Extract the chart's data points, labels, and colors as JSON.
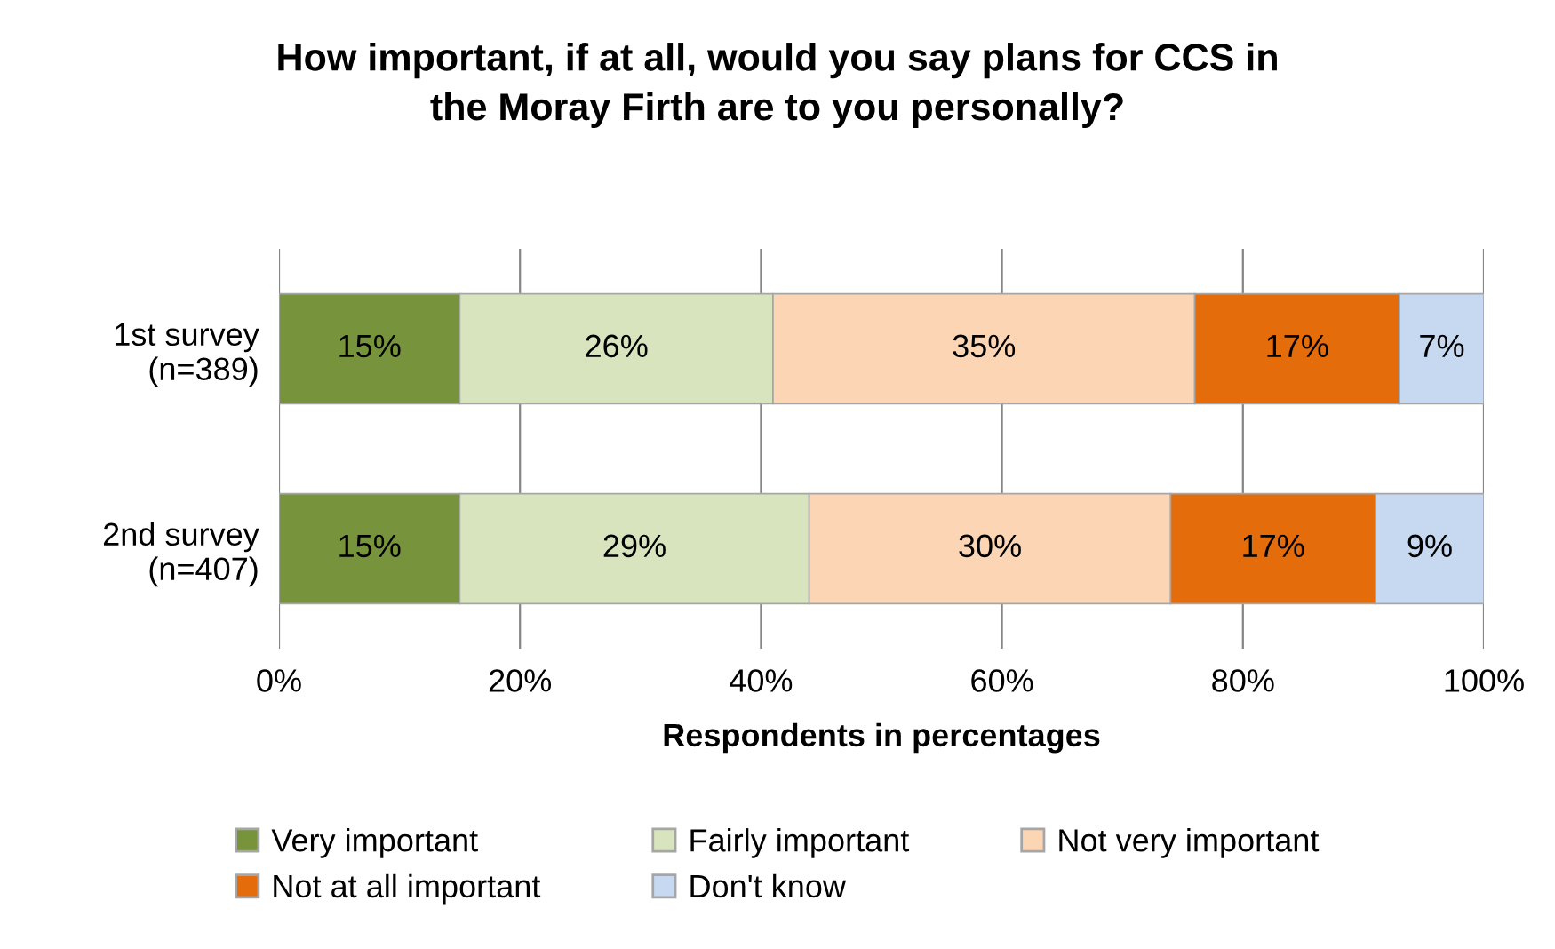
{
  "chart_data": {
    "type": "bar",
    "orientation": "horizontal",
    "stacked": true,
    "title": "How important, if at all, would you say plans for CCS in\nthe Moray Firth are to you personally?",
    "xlabel": "Respondents in percentages",
    "categories": [
      "1st survey\n(n=389)",
      "2nd survey\n(n=407)"
    ],
    "series": [
      {
        "name": "Very important",
        "color": "#77933c",
        "values": [
          15,
          15
        ],
        "value_labels": [
          "15%",
          "15%"
        ]
      },
      {
        "name": "Fairly important",
        "color": "#d7e4bd",
        "values": [
          26,
          29
        ],
        "value_labels": [
          "26%",
          "29%"
        ]
      },
      {
        "name": "Not very important",
        "color": "#fcd5b5",
        "values": [
          35,
          30
        ],
        "value_labels": [
          "35%",
          "30%"
        ]
      },
      {
        "name": "Not at all important",
        "color": "#e46c0a",
        "values": [
          17,
          17
        ],
        "value_labels": [
          "17%",
          "17%"
        ]
      },
      {
        "name": "Don't know",
        "color": "#c6d9f1",
        "values": [
          7,
          9
        ],
        "value_labels": [
          "7%",
          "9%"
        ]
      }
    ],
    "xlim": [
      0,
      100
    ],
    "xticks": [
      {
        "value": 0,
        "label": "0%"
      },
      {
        "value": 20,
        "label": "20%"
      },
      {
        "value": 40,
        "label": "40%"
      },
      {
        "value": 60,
        "label": "60%"
      },
      {
        "value": 80,
        "label": "80%"
      },
      {
        "value": 100,
        "label": "100%"
      }
    ],
    "grid": "x",
    "legend": "bottom"
  }
}
